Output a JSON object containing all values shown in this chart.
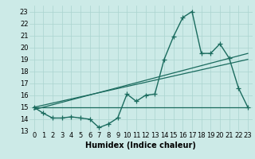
{
  "xlabel": "Humidex (Indice chaleur)",
  "bg_color": "#cceae7",
  "line_color": "#1a6b5e",
  "grid_color": "#aad4d0",
  "xlim": [
    -0.5,
    23.5
  ],
  "ylim": [
    13,
    23.5
  ],
  "yticks": [
    13,
    14,
    15,
    16,
    17,
    18,
    19,
    20,
    21,
    22,
    23
  ],
  "xticks": [
    0,
    1,
    2,
    3,
    4,
    5,
    6,
    7,
    8,
    9,
    10,
    11,
    12,
    13,
    14,
    15,
    16,
    17,
    18,
    19,
    20,
    21,
    22,
    23
  ],
  "line1_x": [
    0,
    1,
    2,
    3,
    4,
    5,
    6,
    7,
    8,
    9,
    10,
    11,
    12,
    13,
    14,
    15,
    16,
    17,
    18,
    19,
    20,
    21,
    22,
    23
  ],
  "line1_y": [
    15.0,
    14.5,
    14.1,
    14.1,
    14.2,
    14.1,
    14.0,
    13.3,
    13.6,
    14.1,
    16.1,
    15.5,
    16.0,
    16.1,
    19.0,
    20.9,
    22.5,
    23.0,
    19.5,
    19.5,
    20.3,
    19.1,
    16.6,
    15.0
  ],
  "line2_x": [
    0,
    23
  ],
  "line2_y": [
    15.0,
    19.0
  ],
  "line3_x": [
    0,
    23
  ],
  "line3_y": [
    15.0,
    15.0
  ],
  "line4_x": [
    0,
    23
  ],
  "line4_y": [
    14.8,
    19.5
  ]
}
